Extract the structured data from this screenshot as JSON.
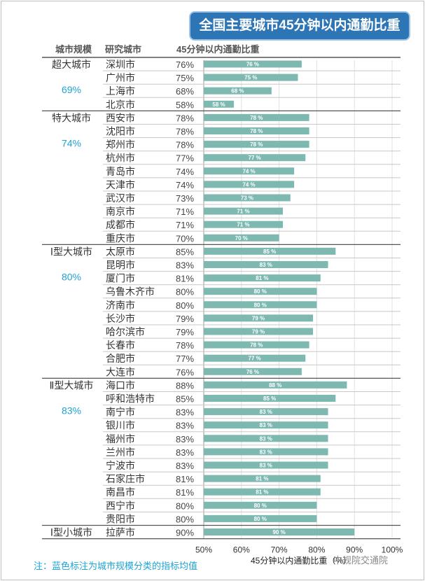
{
  "title": "全国主要城市45分钟以内通勤比重",
  "headers": {
    "size": "城市规模",
    "city": "研究城市",
    "metric": "45分钟以内通勤比重"
  },
  "footnote": "注：蓝色标注为城市规模分类的指标均值",
  "watermark": "中规院交通院",
  "colors": {
    "bar": "#7db8b1",
    "accent": "#1fa3d6",
    "title_bg": "#2e75b6"
  },
  "chart_data": {
    "type": "bar",
    "orientation": "horizontal",
    "title": "全国主要城市45分钟以内通勤比重",
    "xlabel": "45分钟以内通勤比重（%）",
    "xlim": [
      50,
      100
    ],
    "xticks": [
      "50%",
      "60%",
      "70%",
      "80%",
      "90%",
      "100%"
    ],
    "value_suffix": "%",
    "bar_label_suffix": " %",
    "groups": [
      {
        "name": "超大城市",
        "mean": "69%",
        "cities": [
          {
            "name": "深圳市",
            "value": 76
          },
          {
            "name": "广州市",
            "value": 75
          },
          {
            "name": "上海市",
            "value": 68
          },
          {
            "name": "北京市",
            "value": 58
          }
        ]
      },
      {
        "name": "特大城市",
        "mean": "74%",
        "cities": [
          {
            "name": "西安市",
            "value": 78
          },
          {
            "name": "沈阳市",
            "value": 78
          },
          {
            "name": "郑州市",
            "value": 78
          },
          {
            "name": "杭州市",
            "value": 77
          },
          {
            "name": "青岛市",
            "value": 74
          },
          {
            "name": "天津市",
            "value": 74
          },
          {
            "name": "武汉市",
            "value": 73
          },
          {
            "name": "南京市",
            "value": 71
          },
          {
            "name": "成都市",
            "value": 71
          },
          {
            "name": "重庆市",
            "value": 70
          }
        ]
      },
      {
        "name": "Ⅰ型大城市",
        "mean": "80%",
        "cities": [
          {
            "name": "太原市",
            "value": 85
          },
          {
            "name": "昆明市",
            "value": 83
          },
          {
            "name": "厦门市",
            "value": 81
          },
          {
            "name": "乌鲁木齐市",
            "value": 80
          },
          {
            "name": "济南市",
            "value": 80
          },
          {
            "name": "长沙市",
            "value": 79
          },
          {
            "name": "哈尔滨市",
            "value": 79
          },
          {
            "name": "长春市",
            "value": 78
          },
          {
            "name": "合肥市",
            "value": 77
          },
          {
            "name": "大连市",
            "value": 76
          }
        ]
      },
      {
        "name": "Ⅱ型大城市",
        "mean": "83%",
        "cities": [
          {
            "name": "海口市",
            "value": 88
          },
          {
            "name": "呼和浩特市",
            "value": 85
          },
          {
            "name": "南宁市",
            "value": 83
          },
          {
            "name": "银川市",
            "value": 83
          },
          {
            "name": "福州市",
            "value": 83
          },
          {
            "name": "兰州市",
            "value": 83
          },
          {
            "name": "宁波市",
            "value": 83
          },
          {
            "name": "石家庄市",
            "value": 81
          },
          {
            "name": "南昌市",
            "value": 81
          },
          {
            "name": "西宁市",
            "value": 80
          },
          {
            "name": "贵阳市",
            "value": 80
          }
        ]
      },
      {
        "name": "Ⅰ型小城市",
        "mean": "",
        "cities": [
          {
            "name": "拉萨市",
            "value": 90
          }
        ]
      }
    ]
  }
}
